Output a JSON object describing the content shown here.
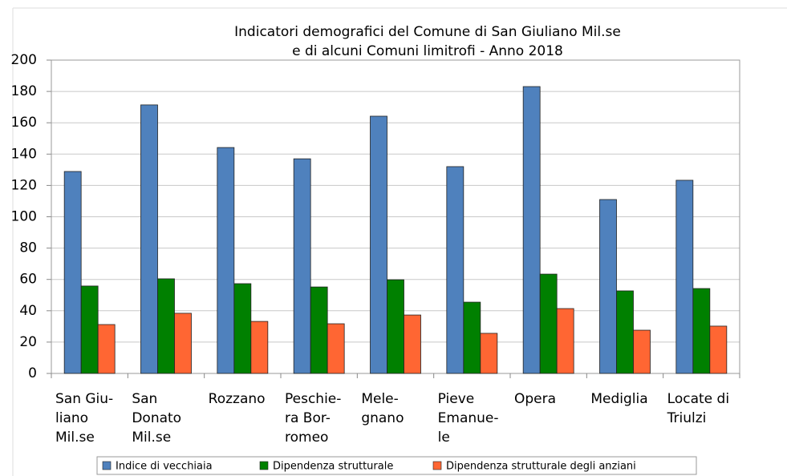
{
  "chart_data": {
    "type": "bar",
    "title": [
      "Indicatori demografici del Comune di San Giuliano Mil.se",
      "e di alcuni Comuni limitrofi  -  Anno 2018"
    ],
    "categories": [
      [
        "San Giu-",
        "liano",
        "Mil.se"
      ],
      [
        "San",
        "Donato",
        "Mil.se"
      ],
      [
        "Rozzano"
      ],
      [
        "Peschie-",
        "ra Bor-",
        "romeo"
      ],
      [
        "Mele-",
        "gnano"
      ],
      [
        "Pieve",
        "Emanue-",
        "le"
      ],
      [
        "Opera"
      ],
      [
        "Mediglia"
      ],
      [
        "Locate di",
        "Triulzi"
      ]
    ],
    "series": [
      {
        "name": "Indice di vecchiaia",
        "color": "#4f81bd",
        "values": [
          128.9,
          171.4,
          144.2,
          137,
          164.2,
          132,
          183.1,
          111,
          123.3
        ]
      },
      {
        "name": "Dipendenza strutturale",
        "color": "#008000",
        "values": [
          55.8,
          60.4,
          57.3,
          55.2,
          59.8,
          45.5,
          63.4,
          52.7,
          54.2
        ]
      },
      {
        "name": "Dipendenza strutturale degli anziani",
        "color": "#ff6633",
        "values": [
          31.2,
          38.4,
          33.2,
          31.7,
          37.3,
          25.6,
          41.4,
          27.6,
          30.2
        ]
      }
    ],
    "ylim": [
      0,
      200
    ],
    "yticks": [
      0,
      20,
      40,
      60,
      80,
      100,
      120,
      140,
      160,
      180,
      200
    ],
    "grid": true,
    "legend": "bottom"
  }
}
